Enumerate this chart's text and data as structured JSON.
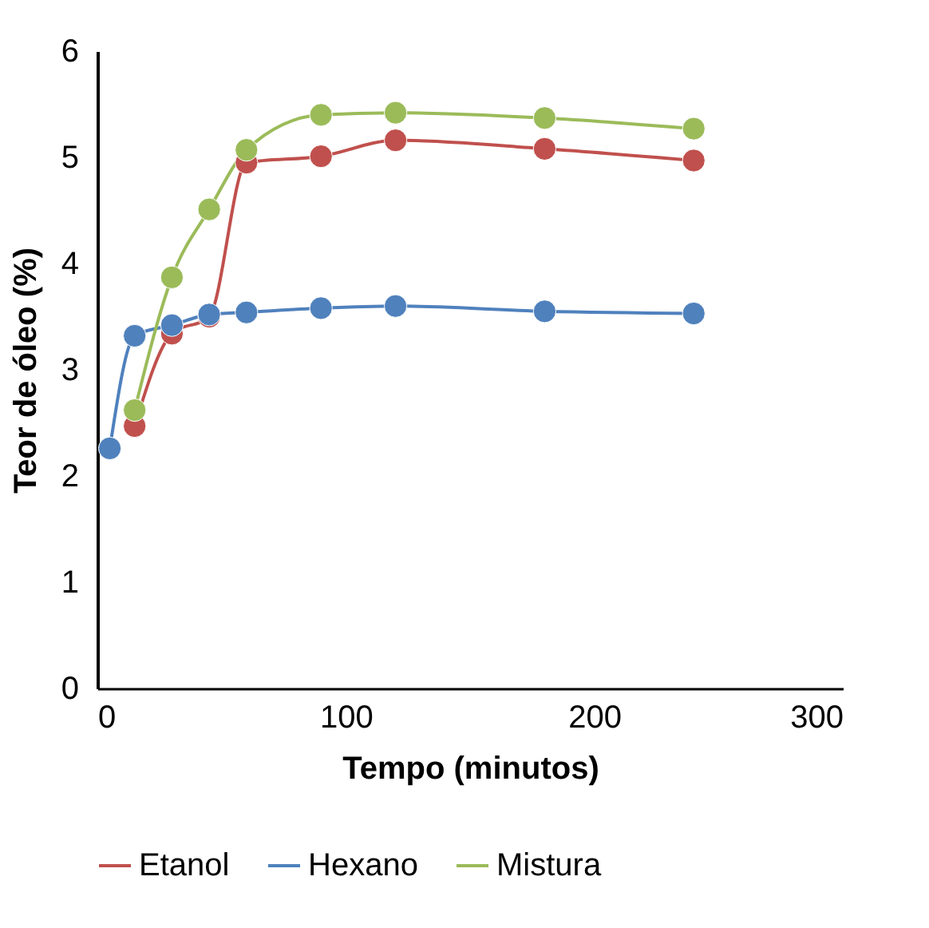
{
  "chart_data": {
    "type": "line",
    "xlabel": "Tempo (minutos)",
    "ylabel": "Teor de óleo (%)",
    "x": [
      15,
      30,
      45,
      60,
      90,
      120,
      180,
      240
    ],
    "series": [
      {
        "name": "Etanol",
        "color": "#c0504d",
        "values": [
          2.47,
          3.34,
          3.5,
          4.95,
          5.01,
          5.16,
          5.08,
          4.97
        ]
      },
      {
        "name": "Hexano",
        "color": "#4f81bd",
        "x": [
          5,
          15,
          30,
          45,
          60,
          90,
          120,
          180,
          240
        ],
        "values": [
          2.26,
          3.32,
          3.42,
          3.52,
          3.54,
          3.58,
          3.6,
          3.55,
          3.53
        ]
      },
      {
        "name": "Mistura",
        "color": "#9bbb59",
        "values": [
          2.62,
          3.87,
          4.51,
          5.07,
          5.4,
          5.42,
          5.37,
          5.27
        ]
      }
    ],
    "xlim": [
      0,
      300
    ],
    "xticks": [
      0,
      100,
      200,
      300
    ],
    "ylim": [
      0,
      6
    ],
    "yticks": [
      0,
      1,
      2,
      3,
      4,
      5,
      6
    ],
    "grid": false,
    "legend": "bottom",
    "marker": "circle",
    "line_style": "solid"
  }
}
